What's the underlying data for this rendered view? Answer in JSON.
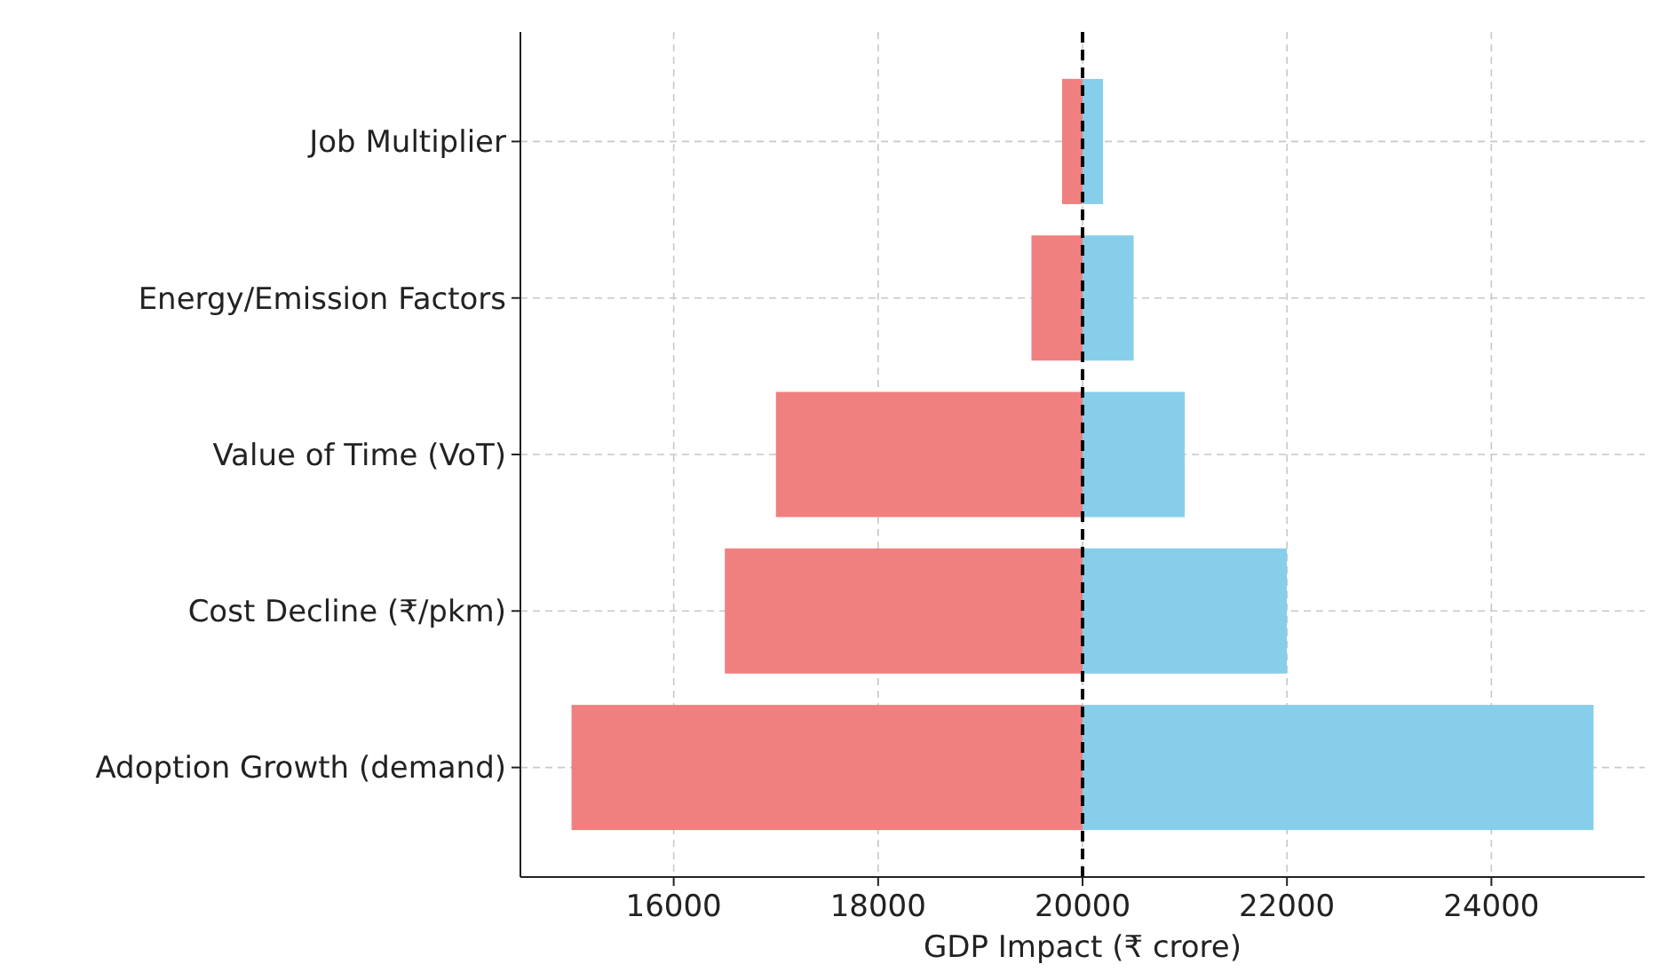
{
  "chart_data": {
    "type": "bar",
    "orientation": "horizontal",
    "xlabel": "GDP Impact (₹ crore)",
    "categories": [
      "Job Multiplier",
      "Energy/Emission Factors",
      "Value of Time (VoT)",
      "Cost Decline (₹/pkm)",
      "Adoption Growth (demand)"
    ],
    "series": [
      {
        "color": "#f08080",
        "base": [
          19800,
          19500,
          17000,
          16500,
          15000
        ],
        "values": [
          200,
          500,
          3000,
          3500,
          5000
        ]
      },
      {
        "color": "#87ceeb",
        "base": [
          20000,
          20000,
          20000,
          20000,
          20000
        ],
        "values": [
          200,
          500,
          1000,
          2000,
          5000
        ]
      }
    ],
    "xlim": [
      14500,
      25500
    ],
    "xticks": [
      16000,
      18000,
      20000,
      22000,
      24000
    ],
    "grid": true,
    "ref_lines": [
      {
        "axis": "x",
        "value": 20000,
        "color": "#000000",
        "line_style": "dashed"
      }
    ]
  }
}
